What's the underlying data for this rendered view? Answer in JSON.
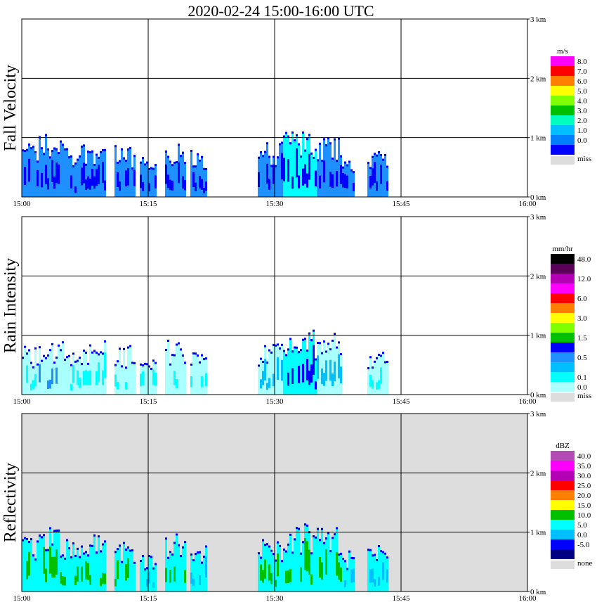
{
  "title": "2020-02-24   15:00-16:00 UTC",
  "chart_data": [
    {
      "type": "heatmap",
      "ylabel": "Fall Velocity",
      "units": "m/s",
      "x_ticks": [
        "15:00",
        "15:15",
        "15:30",
        "15:45",
        "16:00"
      ],
      "y_ticks": [
        "0 km",
        "1 km",
        "2 km",
        "3 km"
      ],
      "ylim_km": [
        0,
        3.0
      ],
      "xlim_min": [
        0,
        60
      ],
      "background": "#ffffff",
      "legend": [
        {
          "label": "8.0",
          "color": "#ff00ff"
        },
        {
          "label": "7.0",
          "color": "#ff0000"
        },
        {
          "label": "6.0",
          "color": "#ff7f00"
        },
        {
          "label": "5.0",
          "color": "#ffff00"
        },
        {
          "label": "4.0",
          "color": "#7fff00"
        },
        {
          "label": "3.0",
          "color": "#00c000"
        },
        {
          "label": "2.0",
          "color": "#00ffbf"
        },
        {
          "label": "1.0",
          "color": "#00bfff"
        },
        {
          "label": "0.0",
          "color": "#007fff"
        },
        {
          "label": "",
          "color": "#0000ff"
        },
        {
          "label": "miss",
          "color": "#dddddd"
        }
      ],
      "echoes": [
        {
          "t0": 0,
          "t1": 2,
          "top": 0.95,
          "core": "#0000ff",
          "fill": "#1e90ff"
        },
        {
          "t0": 2,
          "t1": 5,
          "top": 1.1,
          "core": "#0000ff",
          "fill": "#1e90ff"
        },
        {
          "t0": 5,
          "t1": 7.5,
          "top": 0.95,
          "core": "#0000ff",
          "fill": "#1e90ff"
        },
        {
          "t0": 7.5,
          "t1": 10,
          "top": 1.0,
          "core": "#0000ff",
          "fill": "#1e90ff"
        },
        {
          "t0": 11,
          "t1": 13.5,
          "top": 0.9,
          "core": "#0000ff",
          "fill": "#1e90ff"
        },
        {
          "t0": 14,
          "t1": 16,
          "top": 0.7,
          "core": "#0000ff",
          "fill": "#1e90ff"
        },
        {
          "t0": 17,
          "t1": 19.5,
          "top": 1.0,
          "core": "#0000ff",
          "fill": "#1e90ff"
        },
        {
          "t0": 20,
          "t1": 22,
          "top": 0.8,
          "core": "#0000ff",
          "fill": "#1e90ff"
        },
        {
          "t0": 28,
          "t1": 31,
          "top": 0.95,
          "core": "#0000ff",
          "fill": "#1e90ff"
        },
        {
          "t0": 31,
          "t1": 35,
          "top": 1.15,
          "core": "#0000ff",
          "fill": "#00ffff"
        },
        {
          "t0": 35,
          "t1": 38,
          "top": 1.1,
          "core": "#0000ff",
          "fill": "#1e90ff"
        },
        {
          "t0": 38,
          "t1": 39.5,
          "top": 0.7,
          "core": "#0000ff",
          "fill": "#1e90ff"
        },
        {
          "t0": 41,
          "t1": 43.5,
          "top": 0.85,
          "core": "#0000ff",
          "fill": "#1e90ff"
        }
      ]
    },
    {
      "type": "heatmap",
      "ylabel": "Rain Intensity",
      "units": "mm/hr",
      "x_ticks": [
        "15:00",
        "15:15",
        "15:30",
        "15:45",
        "16:00"
      ],
      "y_ticks": [
        "0 km",
        "1 km",
        "2 km",
        "3 km"
      ],
      "ylim_km": [
        0,
        3.0
      ],
      "xlim_min": [
        0,
        60
      ],
      "background": "#ffffff",
      "legend": [
        {
          "label": "48.0",
          "color": "#000000"
        },
        {
          "label": "",
          "color": "#5a005a"
        },
        {
          "label": "12.0",
          "color": "#b400b4"
        },
        {
          "label": "",
          "color": "#ff00ff"
        },
        {
          "label": "6.0",
          "color": "#ff0000"
        },
        {
          "label": "",
          "color": "#ff7f00"
        },
        {
          "label": "3.0",
          "color": "#ffff00"
        },
        {
          "label": "",
          "color": "#7fff00"
        },
        {
          "label": "1.5",
          "color": "#00c000"
        },
        {
          "label": "",
          "color": "#0000ff"
        },
        {
          "label": "0.5",
          "color": "#1e90ff"
        },
        {
          "label": "",
          "color": "#00bfff"
        },
        {
          "label": "0.1",
          "color": "#00ffff"
        },
        {
          "label": "0.0",
          "color": "#aaffff"
        },
        {
          "label": "miss",
          "color": "#dddddd"
        }
      ],
      "echoes": [
        {
          "t0": 0,
          "t1": 2,
          "top": 0.85,
          "core": "#00ffff",
          "fill": "#aaffff"
        },
        {
          "t0": 2,
          "t1": 5,
          "top": 1.0,
          "core": "#1e90ff",
          "fill": "#aaffff"
        },
        {
          "t0": 5,
          "t1": 7.5,
          "top": 0.9,
          "core": "#00ffff",
          "fill": "#aaffff"
        },
        {
          "t0": 7.5,
          "t1": 10,
          "top": 0.95,
          "core": "#00ffff",
          "fill": "#aaffff"
        },
        {
          "t0": 11,
          "t1": 13.5,
          "top": 0.85,
          "core": "#00ffff",
          "fill": "#aaffff"
        },
        {
          "t0": 14,
          "t1": 16,
          "top": 0.6,
          "core": "#00ffff",
          "fill": "#aaffff"
        },
        {
          "t0": 17,
          "t1": 19.5,
          "top": 0.95,
          "core": "#00ffff",
          "fill": "#aaffff"
        },
        {
          "t0": 20,
          "t1": 22,
          "top": 0.75,
          "core": "#00ffff",
          "fill": "#aaffff"
        },
        {
          "t0": 28,
          "t1": 31,
          "top": 0.9,
          "core": "#00bfff",
          "fill": "#aaffff"
        },
        {
          "t0": 31,
          "t1": 35,
          "top": 1.1,
          "core": "#0000ff",
          "fill": "#00ffff"
        },
        {
          "t0": 35,
          "t1": 38,
          "top": 1.05,
          "core": "#00bfff",
          "fill": "#aaffff"
        },
        {
          "t0": 41,
          "t1": 43.5,
          "top": 0.8,
          "core": "#00ffff",
          "fill": "#aaffff"
        }
      ]
    },
    {
      "type": "heatmap",
      "ylabel": "Reflectivity",
      "units": "dBZ",
      "x_ticks": [
        "15:00",
        "15:15",
        "15:30",
        "15:45",
        "16:00"
      ],
      "y_ticks": [
        "0 km",
        "1 km",
        "2 km",
        "3 km"
      ],
      "ylim_km": [
        0,
        3.0
      ],
      "xlim_min": [
        0,
        60
      ],
      "background": "#dddddd",
      "legend": [
        {
          "label": "40.0",
          "color": "#b44ab4"
        },
        {
          "label": "35.0",
          "color": "#ff00ff"
        },
        {
          "label": "30.0",
          "color": "#b400b4"
        },
        {
          "label": "25.0",
          "color": "#ff0000"
        },
        {
          "label": "20.0",
          "color": "#ff7f00"
        },
        {
          "label": "15.0",
          "color": "#ffff00"
        },
        {
          "label": "10.0",
          "color": "#00c000"
        },
        {
          "label": "5.0",
          "color": "#00ffff"
        },
        {
          "label": "0.0",
          "color": "#00bfff"
        },
        {
          "label": "-5.0",
          "color": "#0000ff"
        },
        {
          "label": "",
          "color": "#000080"
        },
        {
          "label": "none",
          "color": "#dddddd"
        }
      ],
      "echoes": [
        {
          "t0": 0,
          "t1": 2,
          "top": 0.95,
          "core": "#00c000",
          "fill": "#00ffff"
        },
        {
          "t0": 2,
          "t1": 5,
          "top": 1.1,
          "core": "#00c000",
          "fill": "#00ffff"
        },
        {
          "t0": 5,
          "t1": 7.5,
          "top": 0.95,
          "core": "#00c000",
          "fill": "#00ffff"
        },
        {
          "t0": 7.5,
          "t1": 10,
          "top": 1.0,
          "core": "#00c000",
          "fill": "#00ffff"
        },
        {
          "t0": 11,
          "t1": 13.5,
          "top": 0.9,
          "core": "#00c000",
          "fill": "#00ffff"
        },
        {
          "t0": 14,
          "t1": 16,
          "top": 0.7,
          "core": "#00bfff",
          "fill": "#00ffff"
        },
        {
          "t0": 17,
          "t1": 19.5,
          "top": 1.0,
          "core": "#00c000",
          "fill": "#00ffff"
        },
        {
          "t0": 20,
          "t1": 22,
          "top": 0.8,
          "core": "#00bfff",
          "fill": "#00ffff"
        },
        {
          "t0": 28,
          "t1": 31,
          "top": 0.95,
          "core": "#00c000",
          "fill": "#00ffff"
        },
        {
          "t0": 31,
          "t1": 35,
          "top": 1.15,
          "core": "#00c000",
          "fill": "#00ffff"
        },
        {
          "t0": 35,
          "t1": 38,
          "top": 1.1,
          "core": "#00c000",
          "fill": "#00ffff"
        },
        {
          "t0": 38,
          "t1": 39.5,
          "top": 0.7,
          "core": "#00bfff",
          "fill": "#00ffff"
        },
        {
          "t0": 41,
          "t1": 43.5,
          "top": 0.85,
          "core": "#00bfff",
          "fill": "#00ffff"
        }
      ]
    }
  ]
}
